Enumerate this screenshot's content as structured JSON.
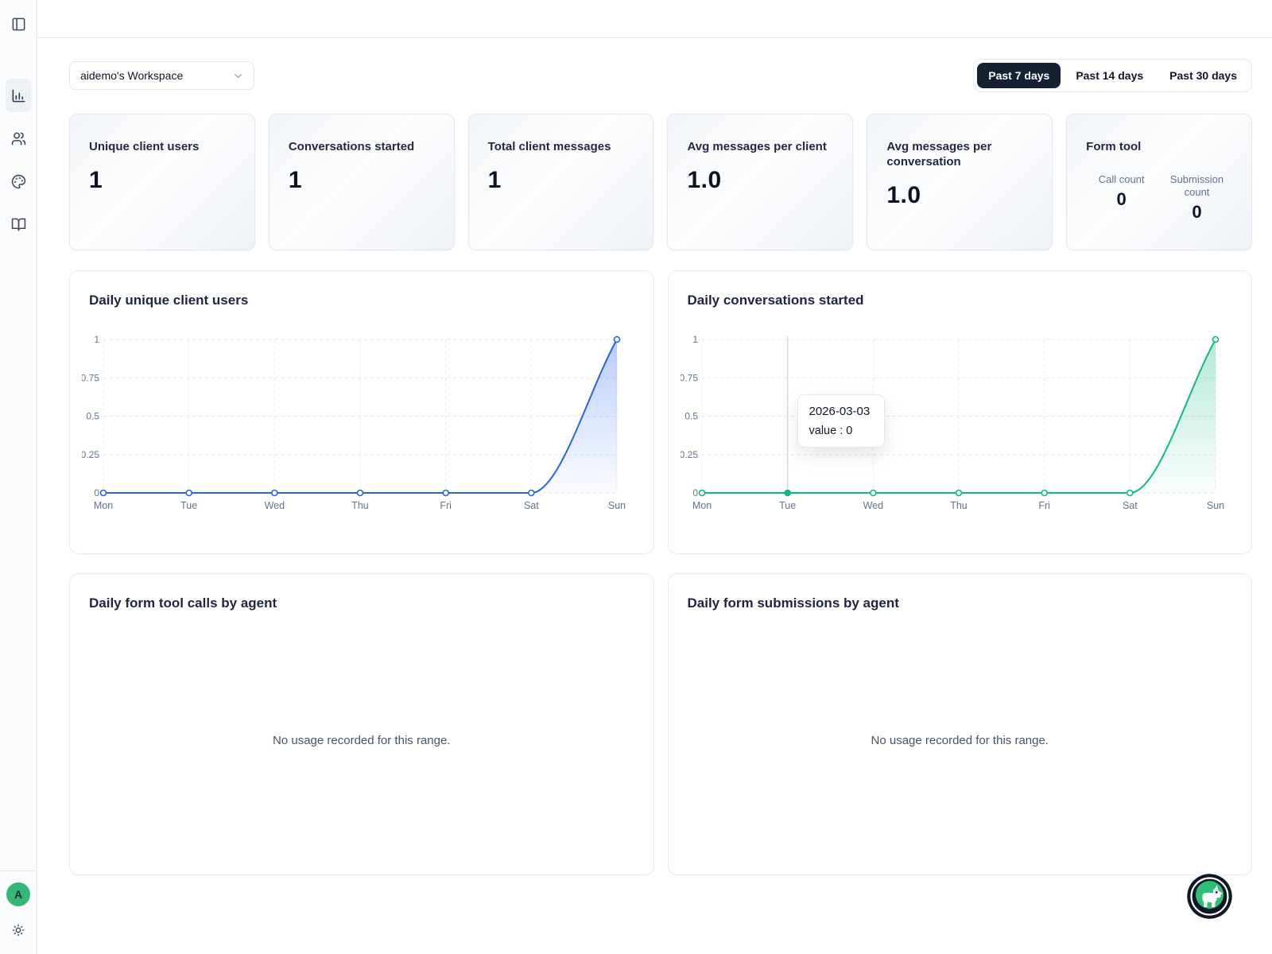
{
  "sidebar": {
    "items": [
      {
        "name": "analytics",
        "icon": "bar-chart-icon",
        "active": true
      },
      {
        "name": "clients",
        "icon": "users-icon",
        "active": false
      },
      {
        "name": "appearance",
        "icon": "palette-icon",
        "active": false
      },
      {
        "name": "docs",
        "icon": "book-open-icon",
        "active": false
      }
    ],
    "avatar_letter": "A",
    "avatar_color": "#35b877"
  },
  "header": {
    "workspace_selector": {
      "value": "aidemo's Workspace"
    },
    "range_tabs": [
      {
        "label": "Past 7 days",
        "active": true
      },
      {
        "label": "Past 14 days",
        "active": false
      },
      {
        "label": "Past 30 days",
        "active": false
      }
    ],
    "active_tab_color": "#152033"
  },
  "stats": [
    {
      "title": "Unique client users",
      "value": "1"
    },
    {
      "title": "Conversations started",
      "value": "1"
    },
    {
      "title": "Total client messages",
      "value": "1"
    },
    {
      "title": "Avg messages per client",
      "value": "1.0"
    },
    {
      "title": "Avg messages per conversation",
      "value": "1.0"
    }
  ],
  "form_tool": {
    "title": "Form tool",
    "metrics": [
      {
        "label": "Call count",
        "value": "0"
      },
      {
        "label": "Submission count",
        "value": "0"
      }
    ]
  },
  "chart_data": [
    {
      "type": "area",
      "title": "Daily unique client users",
      "categories": [
        "Mon",
        "Tue",
        "Wed",
        "Thu",
        "Fri",
        "Sat",
        "Sun"
      ],
      "values": [
        0,
        0,
        0,
        0,
        0,
        0,
        1
      ],
      "color": "#2563eb",
      "ylim": [
        0,
        1
      ],
      "yticks": [
        0,
        0.25,
        0.5,
        0.75,
        1
      ],
      "ytick_labels": [
        "0",
        "0.25",
        "0.5",
        "0.75",
        "1"
      ],
      "grid": "dashed",
      "legend": false
    },
    {
      "type": "area",
      "title": "Daily conversations started",
      "categories": [
        "Mon",
        "Tue",
        "Wed",
        "Thu",
        "Fri",
        "Sat",
        "Sun"
      ],
      "values": [
        0,
        0,
        0,
        0,
        0,
        0,
        1
      ],
      "color": "#10b981",
      "ylim": [
        0,
        1
      ],
      "yticks": [
        0,
        0.25,
        0.5,
        0.75,
        1
      ],
      "ytick_labels": [
        "0",
        "0.25",
        "0.5",
        "0.75",
        "1"
      ],
      "grid": "dashed",
      "legend": false,
      "tooltip": {
        "category": "Tue",
        "date": "2026-03-03",
        "text": "value : 0"
      }
    }
  ],
  "empty_charts": [
    {
      "title": "Daily form tool calls by agent",
      "message": "No usage recorded for this range."
    },
    {
      "title": "Daily form submissions by agent",
      "message": "No usage recorded for this range."
    }
  ]
}
